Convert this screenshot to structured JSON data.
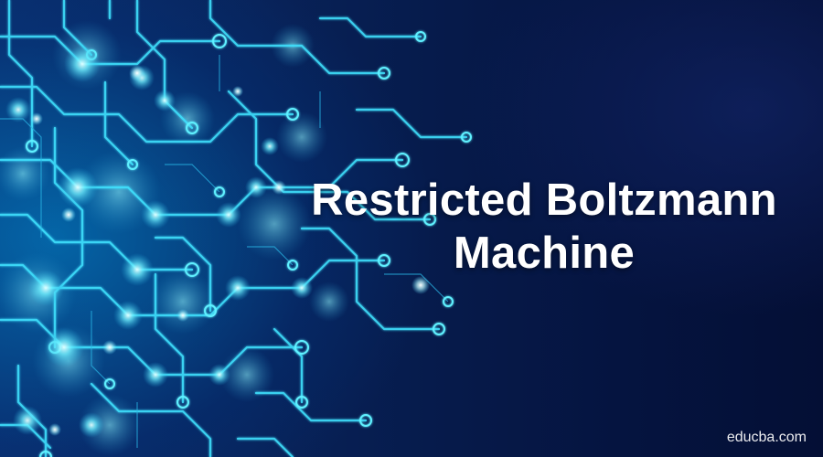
{
  "banner": {
    "title_line1": "Restricted Boltzmann",
    "title_line2": "Machine",
    "watermark": "educba.com"
  },
  "colors": {
    "background": "#061a4a",
    "circuit_glow": "#37e6ff",
    "title_text": "#ffffff"
  },
  "decoration": {
    "illustration": "glowing circuit board traces and nodes"
  }
}
